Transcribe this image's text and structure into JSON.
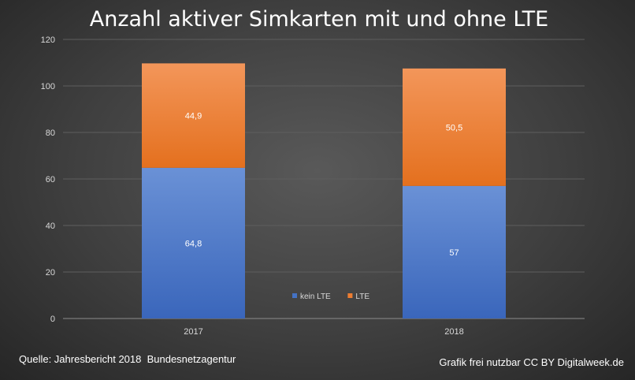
{
  "chart_data": {
    "type": "bar",
    "stacked": true,
    "title": "Anzahl aktiver Simkarten mit und ohne LTE",
    "categories": [
      "2017",
      "2018"
    ],
    "series": [
      {
        "name": "kein LTE",
        "values": [
          64.8,
          57
        ],
        "labels": [
          "64,8",
          "57"
        ],
        "color": "#4472c4"
      },
      {
        "name": "LTE",
        "values": [
          44.9,
          50.5
        ],
        "labels": [
          "44,9",
          "50,5"
        ],
        "color": "#ed7d31"
      }
    ],
    "ylim": [
      0,
      120
    ],
    "yticks": [
      0,
      20,
      40,
      60,
      80,
      100,
      120
    ],
    "grid": true,
    "legend": "bottom-center",
    "xlabel": "",
    "ylabel": ""
  },
  "footer": {
    "source": "Quelle: Jahresbericht 2018  Bundesnetzagentur",
    "credit": "Grafik frei nutzbar CC BY Digitalweek.de"
  },
  "colors": {
    "grid": "#5e5e5e",
    "axis": "#8c8c8c"
  }
}
